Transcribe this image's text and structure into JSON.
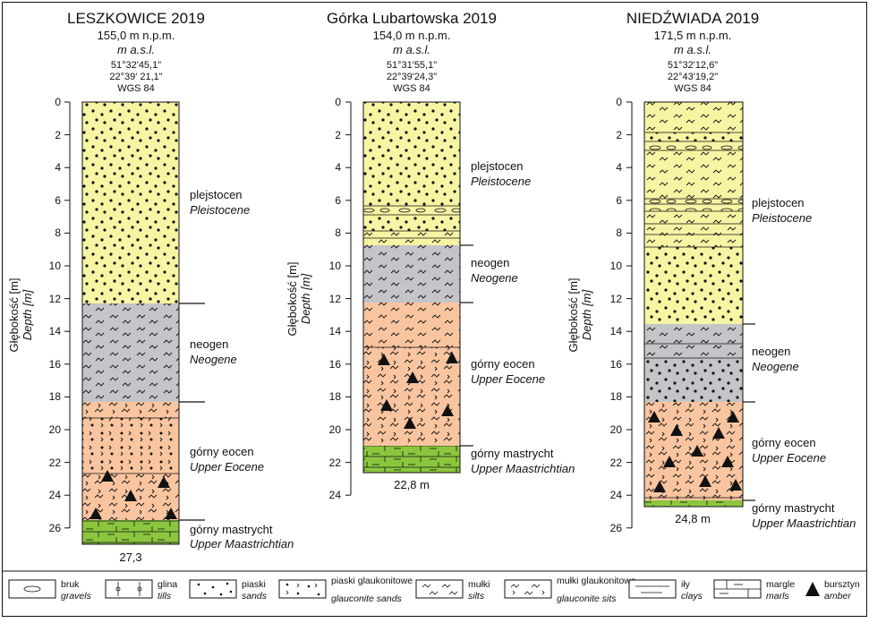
{
  "boreholes": [
    {
      "title": "LESZKOWICE 2019",
      "elevation": "155,0 m n.p.m.",
      "elevation_en": "m a.s.l.",
      "lat": "51°32'45,1\"",
      "lon": "22°39' 21,1\"",
      "datum": "WGS 84",
      "total_depth": "27,3",
      "depth_label": "Głębokość [m]",
      "depth_label_en": "Depth [m]",
      "ticks": [
        "0",
        "2",
        "4",
        "6",
        "8",
        "10",
        "12",
        "14",
        "16",
        "18",
        "20",
        "22",
        "24",
        "26"
      ],
      "units": [
        {
          "pl": "plejstocen",
          "en": "Pleistocene"
        },
        {
          "pl": "neogen",
          "en": "Neogene"
        },
        {
          "pl": "górny eocen",
          "en": "Upper Eocene"
        },
        {
          "pl": "górny mastrycht",
          "en": "Upper Maastrichtian"
        }
      ]
    },
    {
      "title": "Górka Lubartowska 2019",
      "elevation": "154,0 m n.p.m.",
      "elevation_en": "m a.s.l.",
      "lat": "51°31'55,1\"",
      "lon": "22°39'24,3\"",
      "datum": "WGS 84",
      "total_depth": "22,8 m",
      "depth_label": "Głębokość [m]",
      "depth_label_en": "Depth [m]",
      "ticks": [
        "0",
        "2",
        "4",
        "6",
        "8",
        "10",
        "12",
        "14",
        "16",
        "18",
        "20",
        "22",
        "24"
      ],
      "units": [
        {
          "pl": "plejstocen",
          "en": "Pleistocene"
        },
        {
          "pl": "neogen",
          "en": "Neogene"
        },
        {
          "pl": "górny eocen",
          "en": "Upper Eocene"
        },
        {
          "pl": "górny mastrycht",
          "en": "Upper Maastrichtian"
        }
      ]
    },
    {
      "title": "NIEDŹWIADA 2019",
      "elevation": "171,5 m n.p.m.",
      "elevation_en": "m a.s.l.",
      "lat": "51°32'12,6\"",
      "lon": "22°43'19,2\"",
      "datum": "WGS 84",
      "total_depth": "24,8 m",
      "depth_label": "Głębokość [m]",
      "depth_label_en": "Depth [m]",
      "ticks": [
        "0",
        "2",
        "4",
        "6",
        "8",
        "10",
        "12",
        "14",
        "16",
        "18",
        "20",
        "22",
        "24",
        "26"
      ],
      "units": [
        {
          "pl": "plejstocen",
          "en": "Pleistocene"
        },
        {
          "pl": "neogen",
          "en": "Neogene"
        },
        {
          "pl": "górny eocen",
          "en": "Upper Eocene"
        },
        {
          "pl": "górny mastrycht",
          "en": "Upper Maastrichtian"
        }
      ]
    }
  ],
  "legend": [
    {
      "pl": "bruk",
      "en": "gravels",
      "icon": "gravels-icon"
    },
    {
      "pl": "glina",
      "en": "tills",
      "icon": "tills-icon"
    },
    {
      "pl": "piaski",
      "en": "sands",
      "icon": "sands-icon"
    },
    {
      "pl": "piaski glaukonitowe",
      "en": "glauconite sands",
      "icon": "glauconite-sands-icon"
    },
    {
      "pl": "mułki",
      "en": "silts",
      "icon": "silts-icon"
    },
    {
      "pl": "mułki glaukonitowe",
      "en": "glauconite sits",
      "icon": "glauconite-silts-icon"
    },
    {
      "pl": "iły",
      "en": "clays",
      "icon": "clays-icon"
    },
    {
      "pl": "margle",
      "en": "marls",
      "icon": "marls-icon"
    },
    {
      "pl": "bursztyn",
      "en": "amber",
      "icon": "amber-icon"
    }
  ],
  "colors": {
    "pleistocene": "#f7f4a4",
    "neogene": "#c3c5c8",
    "eocene": "#f9c5a0",
    "maastrichtian": "#8cc63f"
  }
}
